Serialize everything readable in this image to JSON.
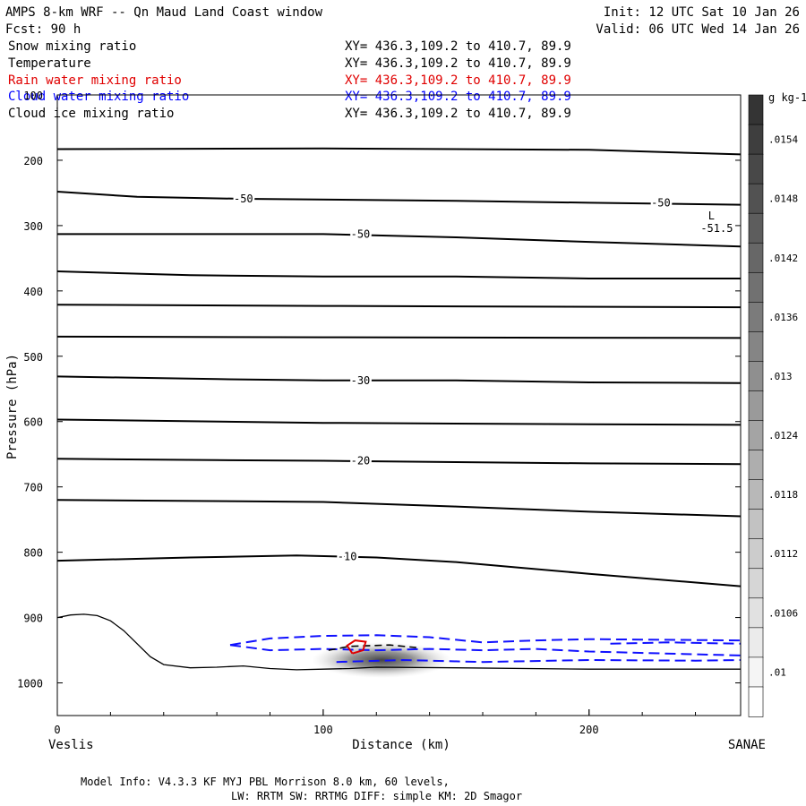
{
  "header": {
    "title": "AMPS 8-km WRF -- Qn Maud Land Coast window",
    "init": "Init: 12 UTC Sat 10 Jan 26",
    "fcst": "Fcst:   90 h",
    "valid": "Valid: 06 UTC Wed 14 Jan 26"
  },
  "legend": [
    {
      "label": "Snow mixing ratio",
      "xy": "XY= 436.3,109.2 to 410.7, 89.9",
      "color": "#000000"
    },
    {
      "label": "Temperature",
      "xy": "XY= 436.3,109.2 to 410.7, 89.9",
      "color": "#000000"
    },
    {
      "label": "Rain water mixing ratio",
      "xy": "XY= 436.3,109.2 to 410.7, 89.9",
      "color": "#e00000"
    },
    {
      "label": "Cloud water mixing ratio",
      "xy": "XY= 436.3,109.2 to 410.7, 89.9",
      "color": "#0000ff"
    },
    {
      "label": "Cloud ice mixing ratio",
      "xy": "XY= 436.3,109.2 to 410.7, 89.9",
      "color": "#000000"
    }
  ],
  "footer": {
    "line1": "Model Info: V4.3.3   KF      MYJ PBL  Morrison            8.0 km,  60 levels,",
    "line2": "LW: RRTM SW: RRTMG   DIFF: simple KM: 2D Smagor"
  },
  "chart_data": {
    "type": "contour-cross-section",
    "title": "AMPS 8-km WRF -- Qn Maud Land Coast window",
    "xlabel": "Distance (km)",
    "ylabel": "Pressure (hPa)",
    "xlim": [
      0,
      257
    ],
    "ylim": [
      1050,
      100
    ],
    "x_ticks": [
      0,
      100,
      200
    ],
    "y_ticks": [
      100,
      200,
      300,
      400,
      500,
      600,
      700,
      800,
      900,
      1000
    ],
    "x_end_labels": {
      "left": "Veslis",
      "right": "SANAE"
    },
    "temperature_contours": [
      {
        "points": [
          [
            0,
            183
          ],
          [
            100,
            182
          ],
          [
            200,
            184
          ],
          [
            257,
            191
          ]
        ],
        "label": ""
      },
      {
        "points": [
          [
            0,
            248
          ],
          [
            30,
            256
          ],
          [
            70,
            259
          ],
          [
            150,
            262
          ],
          [
            200,
            265
          ],
          [
            257,
            268
          ]
        ],
        "label": "-50"
      },
      {
        "points": [
          [
            0,
            313
          ],
          [
            40,
            313
          ],
          [
            100,
            313
          ],
          [
            150,
            318
          ],
          [
            200,
            325
          ],
          [
            257,
            332
          ]
        ],
        "label": "-50"
      },
      {
        "points": [
          [
            0,
            370
          ],
          [
            50,
            376
          ],
          [
            100,
            378
          ],
          [
            150,
            378
          ],
          [
            200,
            381
          ],
          [
            257,
            381
          ]
        ],
        "label": ""
      },
      {
        "points": [
          [
            0,
            421
          ],
          [
            100,
            423
          ],
          [
            257,
            425
          ]
        ],
        "label": ""
      },
      {
        "points": [
          [
            0,
            470
          ],
          [
            100,
            471
          ],
          [
            257,
            472
          ]
        ],
        "label": ""
      },
      {
        "points": [
          [
            0,
            531
          ],
          [
            60,
            535
          ],
          [
            100,
            537
          ],
          [
            150,
            537
          ],
          [
            200,
            540
          ],
          [
            257,
            541
          ]
        ],
        "label": "-30"
      },
      {
        "points": [
          [
            0,
            597
          ],
          [
            100,
            602
          ],
          [
            200,
            604
          ],
          [
            257,
            605
          ]
        ],
        "label": ""
      },
      {
        "points": [
          [
            0,
            657
          ],
          [
            60,
            659
          ],
          [
            100,
            660
          ],
          [
            150,
            662
          ],
          [
            200,
            664
          ],
          [
            257,
            665
          ]
        ],
        "label": "-20"
      },
      {
        "points": [
          [
            0,
            720
          ],
          [
            70,
            722
          ],
          [
            100,
            723
          ],
          [
            150,
            730
          ],
          [
            200,
            738
          ],
          [
            257,
            745
          ]
        ],
        "label": ""
      },
      {
        "points": [
          [
            0,
            813
          ],
          [
            50,
            808
          ],
          [
            90,
            805
          ],
          [
            120,
            808
          ],
          [
            150,
            815
          ],
          [
            200,
            833
          ],
          [
            257,
            852
          ]
        ],
        "label": "-10"
      }
    ],
    "temperature_labels": [
      {
        "x": 70,
        "p": 259,
        "text": "-50"
      },
      {
        "x": 227,
        "p": 265,
        "text": "-50"
      },
      {
        "x": 114,
        "p": 313,
        "text": "-50"
      },
      {
        "x": 114,
        "p": 537,
        "text": "-30"
      },
      {
        "x": 114,
        "p": 660,
        "text": "-20"
      },
      {
        "x": 109,
        "p": 807,
        "text": "-10"
      }
    ],
    "low_marker": {
      "x": 246,
      "p_letter": 285,
      "p_value": 304,
      "letter": "L",
      "value": "-51.5"
    },
    "terrain": [
      [
        0,
        900
      ],
      [
        5,
        896
      ],
      [
        10,
        895
      ],
      [
        15,
        897
      ],
      [
        20,
        905
      ],
      [
        25,
        920
      ],
      [
        30,
        940
      ],
      [
        35,
        960
      ],
      [
        40,
        972
      ],
      [
        50,
        977
      ],
      [
        60,
        976
      ],
      [
        70,
        974
      ],
      [
        80,
        978
      ],
      [
        90,
        980
      ],
      [
        100,
        979
      ],
      [
        110,
        978
      ],
      [
        120,
        976
      ],
      [
        150,
        977
      ],
      [
        200,
        979
      ],
      [
        257,
        979
      ]
    ],
    "cloud_water_contours": [
      {
        "points": [
          [
            65,
            942
          ],
          [
            80,
            932
          ],
          [
            100,
            928
          ],
          [
            120,
            927
          ],
          [
            140,
            930
          ],
          [
            160,
            938
          ],
          [
            180,
            935
          ],
          [
            200,
            933
          ],
          [
            257,
            935
          ]
        ],
        "label": ""
      },
      {
        "points": [
          [
            65,
            942
          ],
          [
            80,
            950
          ],
          [
            100,
            948
          ],
          [
            120,
            950
          ],
          [
            140,
            948
          ],
          [
            160,
            950
          ],
          [
            180,
            948
          ],
          [
            200,
            952
          ],
          [
            257,
            958
          ]
        ],
        "label": ""
      },
      {
        "points": [
          [
            105,
            968
          ],
          [
            130,
            965
          ],
          [
            160,
            968
          ],
          [
            200,
            965
          ],
          [
            240,
            966
          ],
          [
            257,
            965
          ]
        ],
        "label": ""
      },
      {
        "points": [
          [
            208,
            940
          ],
          [
            230,
            938
          ],
          [
            257,
            940
          ]
        ],
        "label": ""
      }
    ],
    "rain_water_contours": [
      {
        "points": [
          [
            111,
            955
          ],
          [
            109,
            943
          ],
          [
            112,
            935
          ],
          [
            116,
            937
          ],
          [
            115,
            950
          ],
          [
            111,
            955
          ]
        ],
        "label": ""
      }
    ],
    "snow_mixing_ratio": {
      "center_x": 122,
      "center_p": 965,
      "max": 0.0154,
      "unit": "g kg-1"
    },
    "colorbar": {
      "unit": "g kg-1",
      "labels": [
        ".0154",
        ".0148",
        ".0142",
        ".0136",
        ".013",
        ".0124",
        ".0118",
        ".0112",
        ".0106",
        ".01"
      ]
    }
  }
}
